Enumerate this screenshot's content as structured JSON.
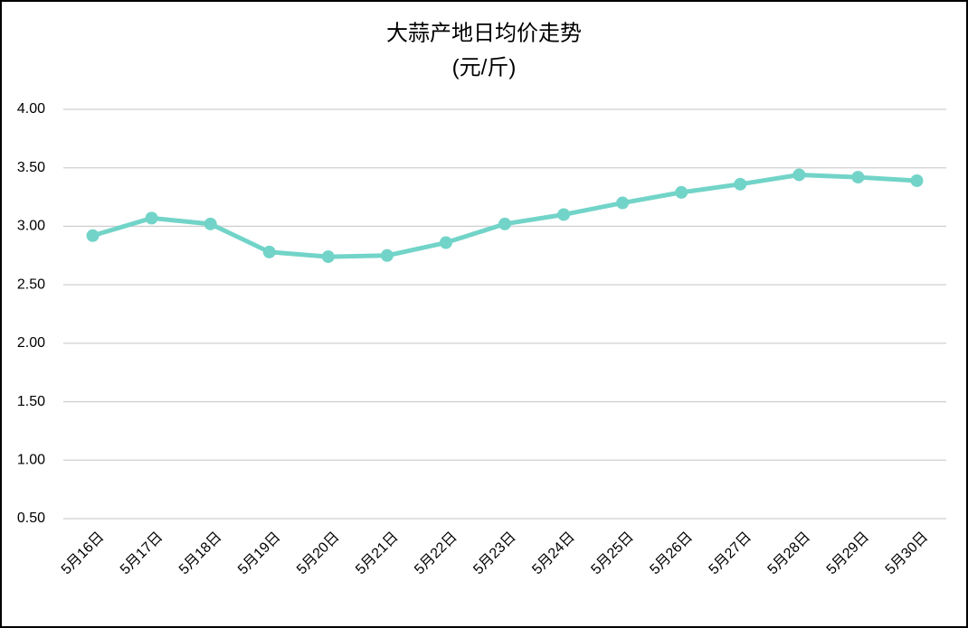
{
  "chart_data": {
    "type": "line",
    "title": "大蒜产地日均价走势",
    "subtitle": "(元/斤)",
    "categories": [
      "5月16日",
      "5月17日",
      "5月18日",
      "5月19日",
      "5月20日",
      "5月21日",
      "5月22日",
      "5月23日",
      "5月24日",
      "5月25日",
      "5月26日",
      "5月27日",
      "5月28日",
      "5月29日",
      "5月30日"
    ],
    "series": [
      {
        "name": "大蒜产地日均价",
        "color": "#72d4c8",
        "values": [
          2.92,
          3.07,
          3.02,
          2.78,
          2.74,
          2.75,
          2.86,
          3.02,
          3.1,
          3.2,
          3.29,
          3.36,
          3.44,
          3.42,
          3.39
        ]
      }
    ],
    "ylim": [
      0.5,
      4.0
    ],
    "yticks": [
      {
        "value": 0.5,
        "label": "0.50"
      },
      {
        "value": 1.0,
        "label": "1.00"
      },
      {
        "value": 1.5,
        "label": "1.50"
      },
      {
        "value": 2.0,
        "label": "2.00"
      },
      {
        "value": 2.5,
        "label": "2.50"
      },
      {
        "value": 3.0,
        "label": "3.00"
      },
      {
        "value": 3.5,
        "label": "3.50"
      },
      {
        "value": 4.0,
        "label": "4.00"
      }
    ],
    "grid": true,
    "legend": false
  }
}
